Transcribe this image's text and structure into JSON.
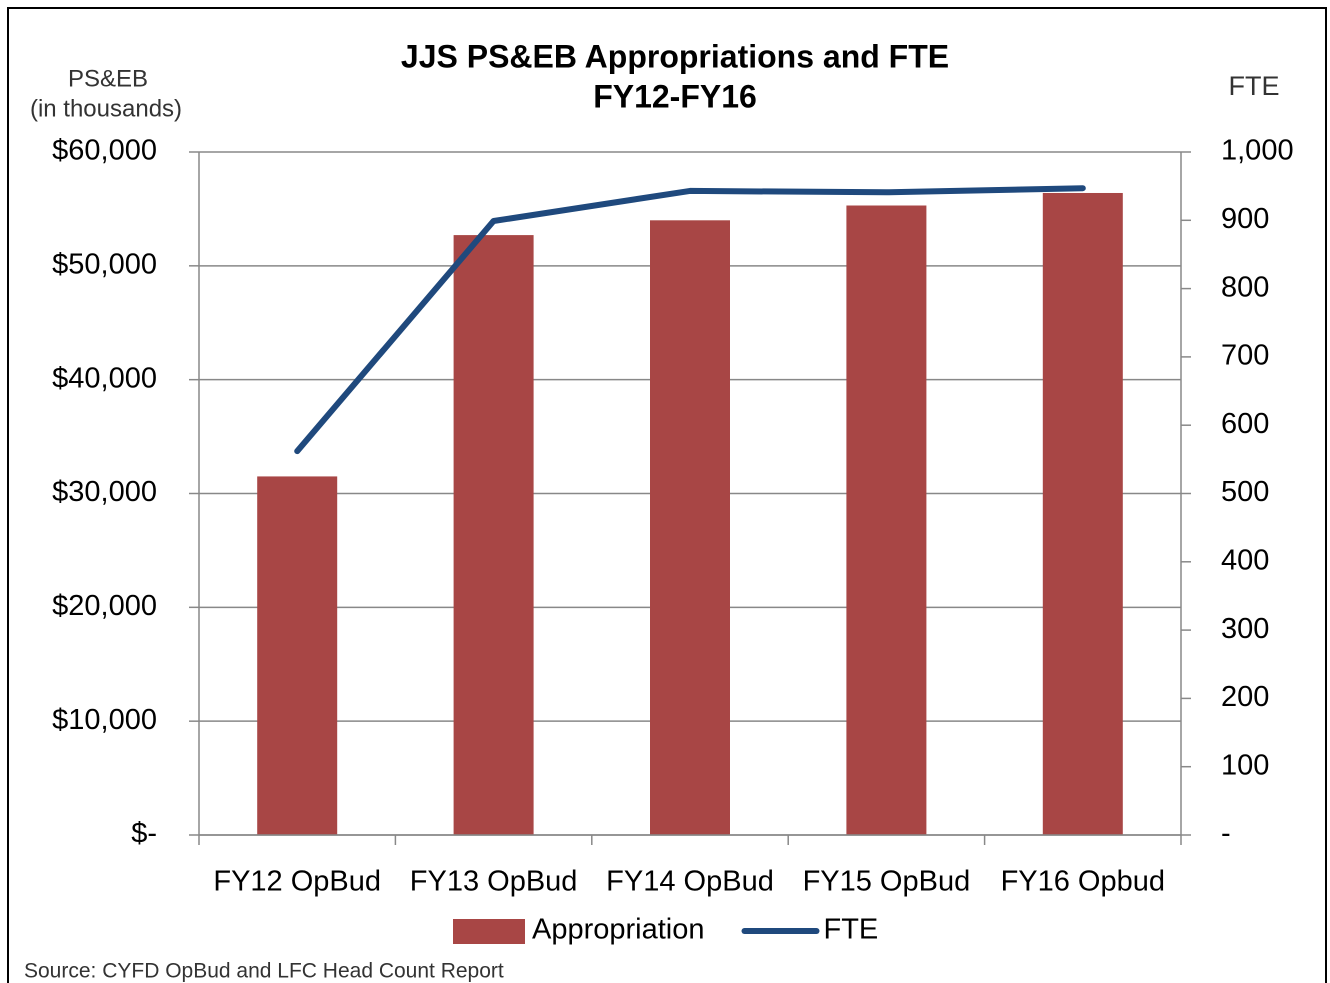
{
  "chart_data": {
    "type": "bar",
    "title": "JJS PS&EB Appropriations and FTE",
    "subtitle": "FY12-FY16",
    "ylabel": [
      "PS&EB",
      "(in thousands)"
    ],
    "y2label": "FTE",
    "categories": [
      "FY12 OpBud",
      "FY13 OpBud",
      "FY14 OpBud",
      "FY15 OpBud",
      "FY16 Opbud"
    ],
    "series": [
      {
        "name": "Appropriation",
        "type": "bar",
        "color": "#a84645",
        "values": [
          31500,
          52700,
          54000,
          55300,
          56400
        ]
      },
      {
        "name": "FTE",
        "type": "line",
        "axis": "y2",
        "color": "#1f497d",
        "values": [
          562,
          899,
          943,
          941,
          947
        ]
      }
    ],
    "ylim": [
      0,
      60000
    ],
    "yticks": [
      {
        "value": 0,
        "label": "$-"
      },
      {
        "value": 10000,
        "label": "$10,000"
      },
      {
        "value": 20000,
        "label": "$20,000"
      },
      {
        "value": 30000,
        "label": "$30,000"
      },
      {
        "value": 40000,
        "label": "$40,000"
      },
      {
        "value": 50000,
        "label": "$50,000"
      },
      {
        "value": 60000,
        "label": "$60,000"
      }
    ],
    "y2lim": [
      0,
      1000
    ],
    "y2ticks": [
      {
        "value": 0,
        "label": "-"
      },
      100,
      200,
      300,
      400,
      500,
      600,
      700,
      800,
      900,
      {
        "value": 1000,
        "label": "1,000"
      }
    ],
    "grid": true,
    "legend": "bottom",
    "source": "Source: CYFD OpBud and LFC Head Count Report"
  }
}
